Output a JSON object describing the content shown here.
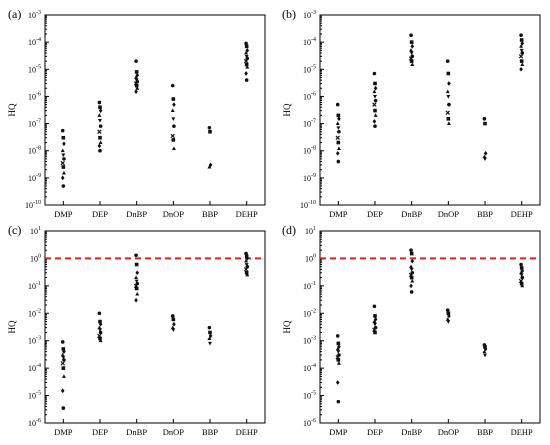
{
  "chart_data": [
    {
      "panel": "(a)",
      "type": "scatter",
      "ylabel": "HQ",
      "yscale": "log",
      "ylim_exp": [
        -10,
        -3
      ],
      "categories": [
        "DMP",
        "DEP",
        "DnBP",
        "DnOP",
        "BBP",
        "DEHP"
      ],
      "points": [
        [
          5.5e-08,
          3e-08,
          1.8e-08,
          1e-08,
          7e-09,
          5e-09,
          3.5e-09,
          2.5e-09,
          1.5e-09,
          1e-09,
          5e-10
        ],
        [
          6e-07,
          4e-07,
          3e-07,
          2e-07,
          1.3e-07,
          8e-08,
          5e-08,
          3e-08,
          2e-08,
          1.5e-08,
          1e-08
        ],
        [
          2e-05,
          8e-06,
          6e-06,
          5e-06,
          4e-06,
          3.5e-06,
          3e-06,
          2.5e-06,
          2e-06,
          1.5e-06
        ],
        [
          2.5e-06,
          8e-07,
          5e-07,
          3e-07,
          1.5e-07,
          8e-08,
          3.5e-08,
          2.5e-08,
          1.2e-08
        ],
        [
          7e-08,
          5e-08,
          3e-09,
          2.5e-09
        ],
        [
          9e-05,
          7e-05,
          5e-05,
          4e-05,
          3e-05,
          2.5e-05,
          2e-05,
          1.5e-05,
          1.2e-05,
          7e-06,
          4e-06
        ]
      ]
    },
    {
      "panel": "(b)",
      "type": "scatter",
      "ylabel": "HQ",
      "yscale": "log",
      "ylim_exp": [
        -10,
        -3
      ],
      "categories": [
        "DMP",
        "DEP",
        "DnBP",
        "DnOP",
        "BBP",
        "DEHP"
      ],
      "points": [
        [
          5e-07,
          2e-07,
          1.5e-07,
          1e-07,
          7e-08,
          5e-08,
          3e-08,
          2e-08,
          1.2e-08,
          8e-09,
          4e-09
        ],
        [
          7e-06,
          3e-06,
          2e-06,
          1.5e-06,
          1e-06,
          7e-07,
          5e-07,
          3e-07,
          2e-07,
          1.2e-07,
          8e-08
        ],
        [
          0.00018,
          0.0001,
          7e-05,
          5e-05,
          4e-05,
          3e-05,
          2.5e-05,
          2e-05,
          1.5e-05
        ],
        [
          2e-05,
          7e-06,
          3e-06,
          1.5e-06,
          1e-06,
          5e-07,
          2.5e-07,
          1.5e-07,
          1e-07
        ],
        [
          1.5e-07,
          1e-07,
          8e-09,
          6e-09,
          5e-09
        ],
        [
          0.00018,
          0.00012,
          9e-05,
          7e-05,
          5e-05,
          4e-05,
          3e-05,
          2e-05,
          1.5e-05,
          1e-05
        ]
      ]
    },
    {
      "panel": "(c)",
      "type": "scatter",
      "ylabel": "HQ",
      "yscale": "log",
      "ylim_exp": [
        -6,
        1
      ],
      "reference_line": 1,
      "categories": [
        "DMP",
        "DEP",
        "DnBP",
        "DnOP",
        "BBP",
        "DEHP"
      ],
      "points": [
        [
          0.0009,
          0.0005,
          0.0004,
          0.0003,
          0.00025,
          0.0002,
          0.00015,
          0.0001,
          5e-05,
          1.5e-05,
          3.5e-06
        ],
        [
          0.01,
          0.005,
          0.004,
          0.003,
          0.0025,
          0.002,
          0.0015,
          0.0012,
          0.001
        ],
        [
          1.3,
          0.6,
          0.3,
          0.2,
          0.15,
          0.12,
          0.1,
          0.08,
          0.05,
          0.03
        ],
        [
          0.008,
          0.006,
          0.004,
          0.003,
          0.0025
        ],
        [
          0.003,
          0.002,
          0.0015,
          0.0012,
          0.0008
        ],
        [
          1.5,
          1.2,
          1,
          0.8,
          0.6,
          0.5,
          0.4,
          0.3,
          0.25
        ]
      ]
    },
    {
      "panel": "(d)",
      "type": "scatter",
      "ylabel": "HQ",
      "yscale": "log",
      "ylim_exp": [
        -6,
        1
      ],
      "reference_line": 1,
      "categories": [
        "DMP",
        "DEP",
        "DnBP",
        "DnOP",
        "BBP",
        "DEHP"
      ],
      "points": [
        [
          0.0015,
          0.0008,
          0.0006,
          0.0005,
          0.0004,
          0.0003,
          0.00025,
          0.0002,
          0.00015,
          3e-05,
          6e-06
        ],
        [
          0.018,
          0.008,
          0.006,
          0.005,
          0.004,
          0.003,
          0.0025,
          0.002
        ],
        [
          2,
          1.5,
          0.8,
          0.5,
          0.4,
          0.3,
          0.25,
          0.2,
          0.15,
          0.1,
          0.06
        ],
        [
          0.013,
          0.01,
          0.008,
          0.006,
          0.005
        ],
        [
          0.0007,
          0.0006,
          0.0005,
          0.0004,
          0.0003
        ],
        [
          0.6,
          0.45,
          0.35,
          0.3,
          0.25,
          0.2,
          0.15,
          0.12,
          0.1
        ]
      ]
    }
  ]
}
